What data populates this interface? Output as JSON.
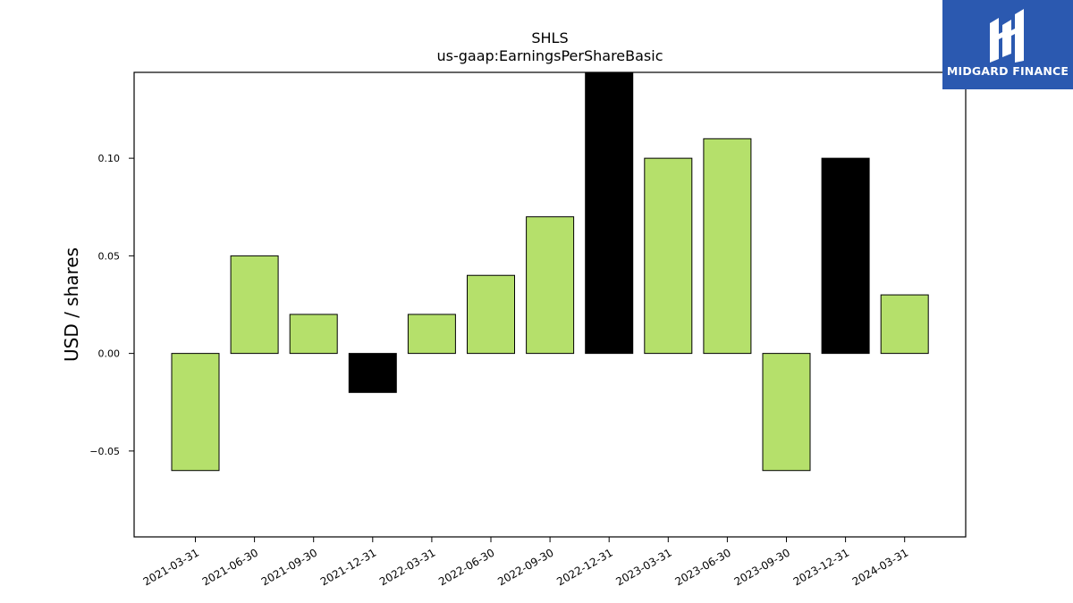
{
  "chart_data": {
    "type": "bar",
    "title": "SHLS",
    "subtitle": "us-gaap:EarningsPerShareBasic",
    "xlabel": "",
    "ylabel": "USD / shares",
    "categories": [
      "2021-03-31",
      "2021-06-30",
      "2021-09-30",
      "2021-12-31",
      "2022-03-31",
      "2022-06-30",
      "2022-09-30",
      "2022-12-31",
      "2023-03-31",
      "2023-06-30",
      "2023-09-30",
      "2023-12-31",
      "2024-03-31"
    ],
    "values": [
      -0.06,
      0.05,
      0.02,
      -0.02,
      0.02,
      0.04,
      0.07,
      0.15,
      0.1,
      0.11,
      -0.06,
      0.1,
      0.03
    ],
    "bar_colors": [
      "#b5e06b",
      "#b5e06b",
      "#b5e06b",
      "#000000",
      "#b5e06b",
      "#b5e06b",
      "#b5e06b",
      "#000000",
      "#b5e06b",
      "#b5e06b",
      "#b5e06b",
      "#000000",
      "#b5e06b"
    ],
    "ylim": [
      -0.094,
      0.144
    ],
    "yticks": [
      -0.05,
      0.0,
      0.05,
      0.1
    ],
    "ytick_labels": [
      "−0.05",
      "0.00",
      "0.05",
      "0.10"
    ],
    "grid": false,
    "legend": "none"
  },
  "logo": {
    "text": "MIDGARD FINANCE",
    "background": "#2b59b0"
  }
}
